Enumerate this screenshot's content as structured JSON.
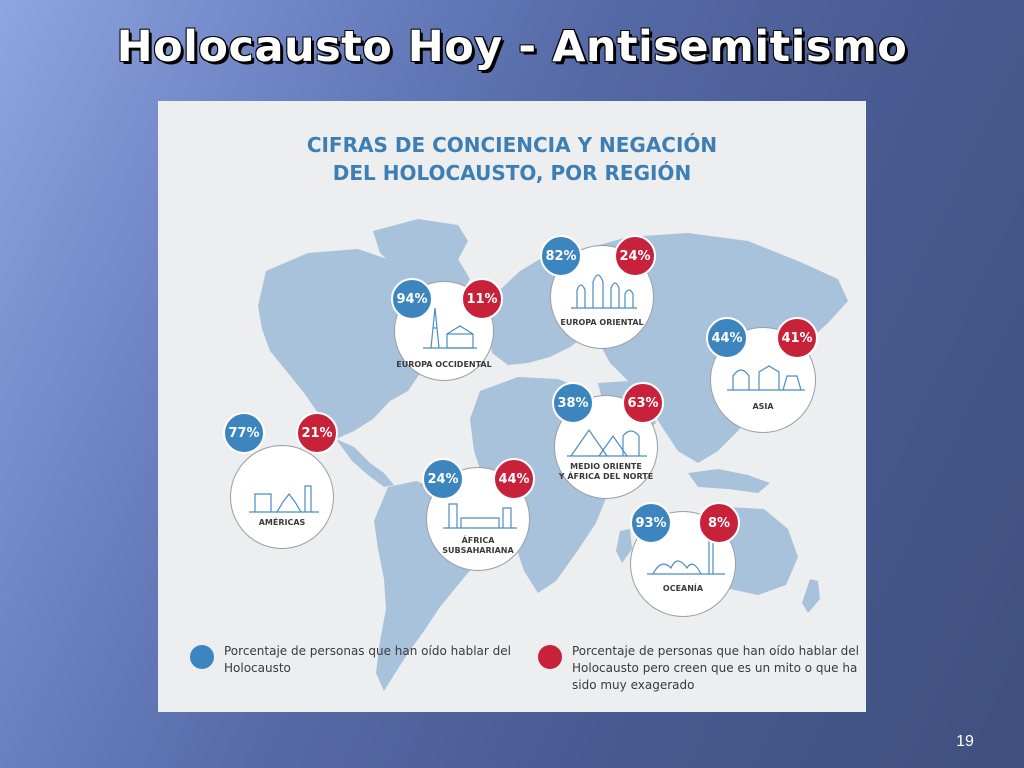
{
  "slide": {
    "title": "Holocausto Hoy - Antisemitismo",
    "number": "19"
  },
  "infographic": {
    "title_line1": "CIFRAS DE CONCIENCIA Y NEGACIÓN",
    "title_line2": "DEL HOLOCAUSTO, POR REGIÓN",
    "colors": {
      "awareness": "#3d85be",
      "denial": "#c8213a",
      "map": "#a9c2dc"
    },
    "regions": [
      {
        "key": "europa-occidental",
        "label_lines": [
          "EUROPA OCCIDENTAL"
        ],
        "awareness": "94%",
        "denial": "11%"
      },
      {
        "key": "europa-oriental",
        "label_lines": [
          "EUROPA ORIENTAL"
        ],
        "awareness": "82%",
        "denial": "24%"
      },
      {
        "key": "asia",
        "label_lines": [
          "ASIA"
        ],
        "awareness": "44%",
        "denial": "41%"
      },
      {
        "key": "medio-oriente",
        "label_lines": [
          "MEDIO ORIENTE",
          "Y ÁFRICA DEL NORTE"
        ],
        "awareness": "38%",
        "denial": "63%"
      },
      {
        "key": "americas",
        "label_lines": [
          "AMÉRICAS"
        ],
        "awareness": "77%",
        "denial": "21%"
      },
      {
        "key": "africa-subsahariana",
        "label_lines": [
          "ÁFRICA",
          "SUBSAHARIANA"
        ],
        "awareness": "24%",
        "denial": "44%"
      },
      {
        "key": "oceania",
        "label_lines": [
          "OCEANÍA"
        ],
        "awareness": "93%",
        "denial": "8%"
      }
    ],
    "legend": {
      "awareness_lines": [
        "Porcentaje de personas que han oído hablar del",
        "Holocausto"
      ],
      "denial_lines": [
        "Porcentaje de personas que han oído hablar del",
        "Holocausto pero creen que es un mito o que ha",
        "sido muy exagerado"
      ]
    }
  }
}
